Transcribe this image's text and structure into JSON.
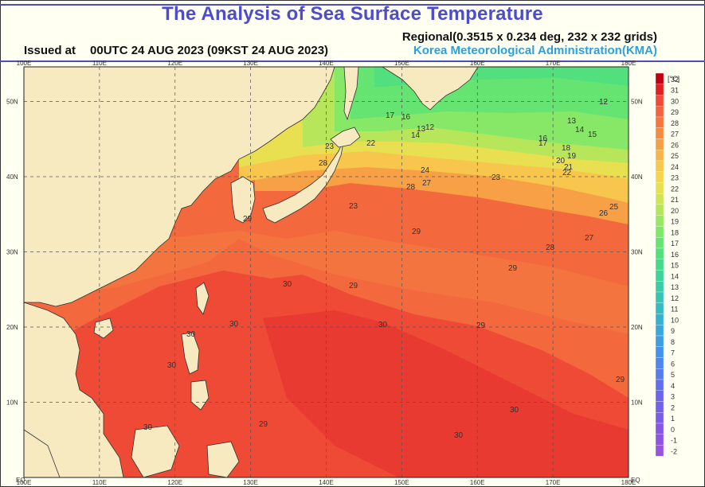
{
  "title": "The Analysis of Sea Surface Temperature",
  "regional": "Regional(0.3515 x 0.234 deg, 232 x 232 grids)",
  "issued_label": "Issued at",
  "issued_time": "00UTC 24 AUG 2023 (09KST 24 AUG 2023)",
  "agency": "Korea Meteorological Administration(KMA)",
  "map": {
    "lon_labels": [
      "100E",
      "110E",
      "120E",
      "130E",
      "140E",
      "150E",
      "160E",
      "170E",
      "180E"
    ],
    "lat_labels": [
      "EQ",
      "10N",
      "20N",
      "30N",
      "40N",
      "50N"
    ],
    "contour_labels": [
      "12",
      "13",
      "14",
      "15",
      "16",
      "17",
      "18",
      "19",
      "20",
      "21",
      "22",
      "23",
      "24",
      "25",
      "26",
      "27",
      "28",
      "29",
      "30"
    ]
  },
  "colorbar": {
    "unit": "[°C]",
    "ticks": [
      "32",
      "31",
      "30",
      "29",
      "28",
      "27",
      "26",
      "25",
      "24",
      "23",
      "22",
      "21",
      "20",
      "19",
      "18",
      "17",
      "16",
      "15",
      "14",
      "13",
      "12",
      "11",
      "10",
      "9",
      "8",
      "7",
      "6",
      "5",
      "4",
      "3",
      "2",
      "1",
      "0",
      "-1",
      "-2"
    ],
    "colors": [
      "#c00010",
      "#e02020",
      "#f04a3a",
      "#f4623f",
      "#f5763f",
      "#f68a40",
      "#f7a043",
      "#f8b547",
      "#f8c84c",
      "#f4d64e",
      "#e8e050",
      "#d0e455",
      "#b4e65a",
      "#98e860",
      "#7ee868",
      "#66e472",
      "#52df7e",
      "#46d98a",
      "#3ed398",
      "#3acca6",
      "#36c4b4",
      "#34bcc2",
      "#34b2d0",
      "#38a8dc",
      "#3e9ee4",
      "#4692ea",
      "#4e86ee",
      "#587aef",
      "#626ef0",
      "#6a64ee",
      "#7060ec",
      "#7a5ce8",
      "#8458e4",
      "#8e56e0",
      "#9854dc"
    ]
  }
}
